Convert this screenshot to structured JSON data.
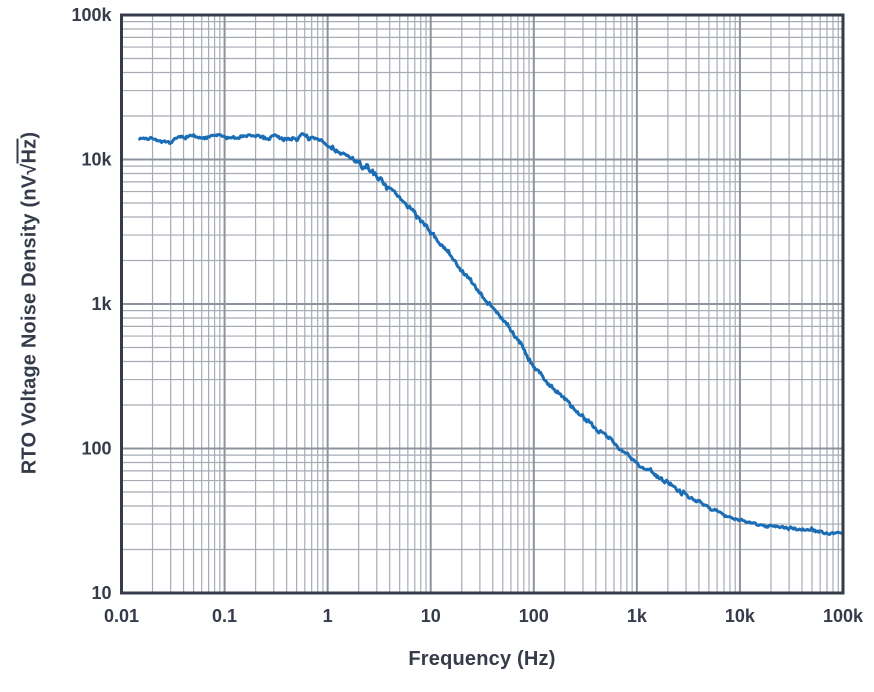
{
  "page": {
    "background": "#ffffff",
    "text_color": "#353b4a"
  },
  "style": {
    "curve_color": "#1b6db5",
    "grid_minor_color": "#a6abb4",
    "grid_major_color": "#8d939d",
    "axis_box_color": "#353b4a",
    "tick_label_color": "#353b4a"
  },
  "axes": {
    "xlabel": "Frequency (Hz)",
    "ylabel_prefix": "RTO Voltage Noise Density (nV",
    "ylabel_radical": "√",
    "ylabel_overlined": "Hz",
    "ylabel_suffix": ")",
    "x_ticks": [
      {
        "value": 0.01,
        "label": "0.01"
      },
      {
        "value": 0.1,
        "label": "0.1"
      },
      {
        "value": 1,
        "label": "1"
      },
      {
        "value": 10,
        "label": "10"
      },
      {
        "value": 100,
        "label": "100"
      },
      {
        "value": 1000,
        "label": "1k"
      },
      {
        "value": 10000,
        "label": "10k"
      },
      {
        "value": 100000,
        "label": "100k"
      }
    ],
    "y_ticks": [
      {
        "value": 10,
        "label": "10"
      },
      {
        "value": 100,
        "label": "100"
      },
      {
        "value": 1000,
        "label": "1k"
      },
      {
        "value": 10000,
        "label": "10k"
      },
      {
        "value": 100000,
        "label": "100k"
      }
    ]
  },
  "chart_data": {
    "type": "line",
    "title": "",
    "xlabel": "Frequency (Hz)",
    "ylabel": "RTO Voltage Noise Density (nV√Hz)",
    "x_scale": "log",
    "y_scale": "log",
    "xlim": [
      0.01,
      100000
    ],
    "ylim": [
      10,
      100000
    ],
    "grid": "major and minor log gridlines, both axes",
    "legend": "none",
    "series": [
      {
        "name": "RTO voltage noise density",
        "color": "#1b6db5",
        "noise_band_appearance": "noisy measured trace",
        "points": [
          [
            0.015,
            14200
          ],
          [
            0.018,
            13900
          ],
          [
            0.02,
            14100
          ],
          [
            0.025,
            13000
          ],
          [
            0.03,
            13100
          ],
          [
            0.035,
            14200
          ],
          [
            0.04,
            14300
          ],
          [
            0.05,
            14600
          ],
          [
            0.06,
            13900
          ],
          [
            0.07,
            14200
          ],
          [
            0.08,
            14700
          ],
          [
            0.1,
            14400
          ],
          [
            0.12,
            14100
          ],
          [
            0.15,
            14400
          ],
          [
            0.2,
            14600
          ],
          [
            0.25,
            14100
          ],
          [
            0.3,
            14300
          ],
          [
            0.4,
            13900
          ],
          [
            0.5,
            14300
          ],
          [
            0.6,
            14700
          ],
          [
            0.7,
            13900
          ],
          [
            0.8,
            13600
          ],
          [
            0.9,
            13200
          ],
          [
            1,
            12400
          ],
          [
            1.2,
            11500
          ],
          [
            1.5,
            10700
          ],
          [
            2,
            9400
          ],
          [
            2.5,
            8500
          ],
          [
            3,
            7700
          ],
          [
            4,
            6400
          ],
          [
            5,
            5400
          ],
          [
            6,
            4800
          ],
          [
            7,
            4300
          ],
          [
            8,
            3800
          ],
          [
            10,
            3100
          ],
          [
            12,
            2700
          ],
          [
            15,
            2250
          ],
          [
            20,
            1700
          ],
          [
            25,
            1400
          ],
          [
            30,
            1200
          ],
          [
            40,
            950
          ],
          [
            50,
            780
          ],
          [
            70,
            580
          ],
          [
            100,
            370
          ],
          [
            150,
            265
          ],
          [
            200,
            215
          ],
          [
            300,
            165
          ],
          [
            400,
            140
          ],
          [
            500,
            124
          ],
          [
            700,
            99
          ],
          [
            1000,
            79
          ],
          [
            1500,
            66
          ],
          [
            2000,
            58
          ],
          [
            3000,
            48
          ],
          [
            5000,
            39
          ],
          [
            7000,
            35
          ],
          [
            10000,
            32
          ],
          [
            15000,
            30
          ],
          [
            20000,
            29
          ],
          [
            30000,
            28
          ],
          [
            50000,
            27
          ],
          [
            70000,
            26
          ],
          [
            100000,
            26
          ]
        ]
      }
    ]
  }
}
